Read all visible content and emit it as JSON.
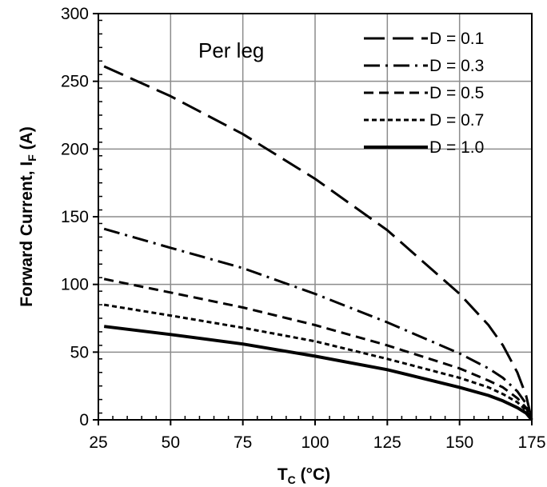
{
  "chart_data": {
    "type": "line",
    "annotation": "Per leg",
    "xlabel": {
      "main": "T",
      "sub": "C",
      "suffix": " (°C)"
    },
    "ylabel": {
      "main": "Forward Current, I",
      "sub": "F",
      "suffix": " (A)"
    },
    "xlim": [
      25,
      175
    ],
    "ylim": [
      0,
      300
    ],
    "xticks": [
      "25",
      "50",
      "75",
      "100",
      "125",
      "150",
      "175"
    ],
    "yticks": [
      "0",
      "50",
      "100",
      "150",
      "200",
      "250",
      "300"
    ],
    "grid": true,
    "legend_position": "top-right",
    "series": [
      {
        "name": "D = 0.1",
        "dash": "26,10",
        "x": [
          27,
          50,
          75,
          100,
          125,
          150,
          160,
          165,
          170,
          173,
          175
        ],
        "y": [
          261,
          239,
          211,
          178,
          140,
          93,
          70,
          55,
          35,
          18,
          0
        ]
      },
      {
        "name": "D = 0.3",
        "dash": "20,7,3,7",
        "x": [
          27,
          50,
          75,
          100,
          125,
          150,
          160,
          165,
          170,
          173,
          175
        ],
        "y": [
          141,
          127,
          112,
          93,
          72,
          49,
          38,
          31,
          21,
          12,
          0
        ]
      },
      {
        "name": "D = 0.5",
        "dash": "12,7",
        "x": [
          27,
          50,
          75,
          100,
          125,
          150,
          160,
          165,
          170,
          173,
          175
        ],
        "y": [
          104,
          94,
          83,
          70,
          55,
          38,
          29,
          24,
          16,
          9,
          0
        ]
      },
      {
        "name": "D = 0.7",
        "dash": "6,4",
        "x": [
          27,
          50,
          75,
          100,
          125,
          150,
          160,
          165,
          170,
          173,
          175
        ],
        "y": [
          85,
          77,
          68,
          58,
          45,
          31,
          24,
          19,
          13,
          7,
          0
        ]
      },
      {
        "name": "D = 1.0",
        "dash": "",
        "x": [
          27,
          50,
          75,
          100,
          125,
          150,
          160,
          165,
          170,
          173,
          175
        ],
        "y": [
          69,
          63,
          56,
          47,
          37,
          24,
          18,
          14,
          9,
          5,
          0
        ]
      }
    ]
  }
}
